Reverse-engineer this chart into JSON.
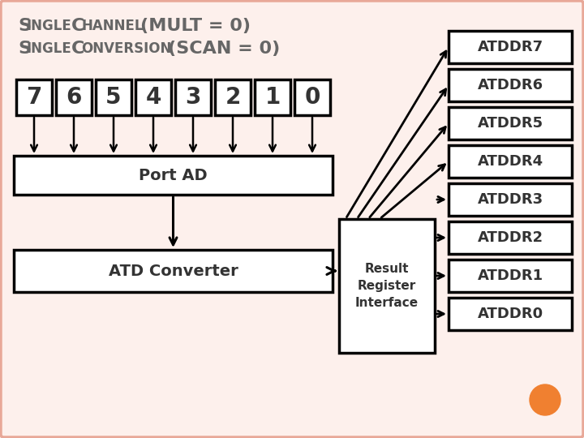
{
  "bg_color": "#fdf0ec",
  "border_color": "#e8a898",
  "channel_labels": [
    "7",
    "6",
    "5",
    "4",
    "3",
    "2",
    "1",
    "0"
  ],
  "port_ad_label": "Port AD",
  "atd_label": "ATD Converter",
  "rri_label": "Result\nRegister\nInterface",
  "atddr_labels": [
    "ATDDR7",
    "ATDDR6",
    "ATDDR5",
    "ATDDR4",
    "ATDDR3",
    "ATDDR2",
    "ATDDR1",
    "ATDDR0"
  ],
  "box_fill": "#ffffff",
  "box_edge": "#000000",
  "arrow_color": "#000000",
  "font_color": "#333333",
  "orange_dot_color": "#f08030",
  "title_color": "#666666"
}
